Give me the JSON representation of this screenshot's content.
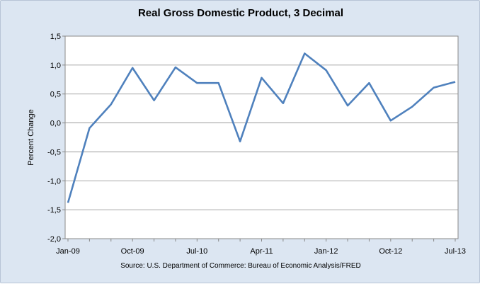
{
  "chart_data": {
    "type": "line",
    "title": "Real Gross Domestic Product, 3 Decimal",
    "xlabel": "",
    "ylabel": "Percent Change",
    "source": "Source: U.S. Department of Commerce: Bureau of Economic Analysis/FRED",
    "x_tick_labels": [
      "Jan-09",
      "Oct-09",
      "Jul-10",
      "Apr-11",
      "Jan-12",
      "Oct-12",
      "Jul-13"
    ],
    "y_tick_labels": [
      "1,5",
      "1,0",
      "0,5",
      "0,0",
      "-0,5",
      "-1,0",
      "-1,5",
      "-2,0"
    ],
    "ylim": [
      -2.0,
      1.5
    ],
    "y_step": 0.5,
    "grid": true,
    "legend": "none",
    "x": [
      "Jan-09",
      "Apr-09",
      "Jul-09",
      "Oct-09",
      "Jan-10",
      "Apr-10",
      "Jul-10",
      "Oct-10",
      "Jan-11",
      "Apr-11",
      "Jul-11",
      "Oct-11",
      "Jan-12",
      "Apr-12",
      "Jul-12",
      "Oct-12",
      "Jan-13",
      "Apr-13",
      "Jul-13"
    ],
    "series": [
      {
        "values": [
          -1.38,
          -0.09,
          0.32,
          0.95,
          0.39,
          0.96,
          0.69,
          0.69,
          -0.32,
          0.78,
          0.34,
          1.2,
          0.91,
          0.3,
          0.69,
          0.04,
          0.28,
          0.61,
          0.71
        ],
        "color": "#4f81bd"
      }
    ]
  }
}
